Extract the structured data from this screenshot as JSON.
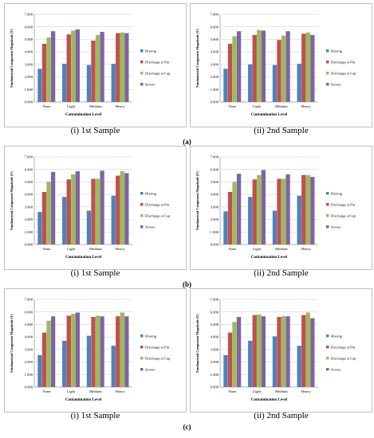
{
  "legend": [
    "Hissing",
    "Discharge at Pin",
    "Discharge at Cap",
    "Severe"
  ],
  "colors": [
    "#4f81bd",
    "#c0504d",
    "#9bbb59",
    "#8064a2"
  ],
  "row_labels": [
    "(a)",
    "(b)",
    "(c)"
  ],
  "chart_data": [
    {
      "type": "bar",
      "caption": "(i) 1st Sample",
      "categories": [
        "None",
        "Light",
        "Medium",
        "Heavy"
      ],
      "ylabel": "Fundamental Component Magnitude (V)",
      "xlabel": "Contamination Level",
      "yticks": [
        "0.000",
        "1.000",
        "2.000",
        "3.000",
        "4.000",
        "5.000",
        "6.000",
        "7.000"
      ],
      "ylim": [
        0,
        7
      ],
      "series": [
        {
          "name": "Hissing",
          "values": [
            2.65,
            3.05,
            2.95,
            3.05
          ]
        },
        {
          "name": "Discharge at Pin",
          "values": [
            4.65,
            5.4,
            4.9,
            5.5
          ]
        },
        {
          "name": "Discharge at Cap",
          "values": [
            5.15,
            5.7,
            5.35,
            5.55
          ]
        },
        {
          "name": "Severe",
          "values": [
            5.65,
            5.8,
            5.6,
            5.5
          ]
        }
      ]
    },
    {
      "type": "bar",
      "caption": "(ii) 2nd Sample",
      "categories": [
        "None",
        "Light",
        "Medium",
        "Heavy"
      ],
      "ylabel": "Fundamental Component Magnitude (V)",
      "xlabel": "Contamination Level",
      "yticks": [
        "0.000",
        "1.000",
        "2.000",
        "3.000",
        "4.000",
        "5.000",
        "6.000",
        "7.000"
      ],
      "ylim": [
        0,
        7
      ],
      "series": [
        {
          "name": "Hissing",
          "values": [
            2.65,
            3.0,
            2.95,
            3.05
          ]
        },
        {
          "name": "Discharge at Pin",
          "values": [
            4.65,
            5.35,
            4.95,
            5.45
          ]
        },
        {
          "name": "Discharge at Cap",
          "values": [
            5.25,
            5.75,
            5.3,
            5.55
          ]
        },
        {
          "name": "Severe",
          "values": [
            5.65,
            5.7,
            5.65,
            5.35
          ]
        }
      ]
    },
    {
      "type": "bar",
      "caption": "(i) 1st Sample",
      "categories": [
        "None",
        "Light",
        "Medium",
        "Heavy"
      ],
      "ylabel": "Fundamental Component Magnitude (V)",
      "xlabel": "Contamination Level",
      "yticks": [
        "0.000",
        "1.000",
        "2.000",
        "3.000",
        "4.000",
        "5.000",
        "6.000",
        "7.000"
      ],
      "ylim": [
        0,
        7
      ],
      "series": [
        {
          "name": "Hissing",
          "values": [
            2.6,
            3.8,
            2.7,
            3.9
          ]
        },
        {
          "name": "Discharge at Pin",
          "values": [
            4.2,
            5.2,
            5.25,
            5.5
          ]
        },
        {
          "name": "Discharge at Cap",
          "values": [
            5.0,
            5.6,
            5.25,
            5.85
          ]
        },
        {
          "name": "Severe",
          "values": [
            5.8,
            5.85,
            5.9,
            5.7
          ]
        }
      ]
    },
    {
      "type": "bar",
      "caption": "(ii) 2nd Sample",
      "categories": [
        "None",
        "Light",
        "Medium",
        "Heavy"
      ],
      "ylabel": "Fundamental Component Magnitude (V)",
      "xlabel": "Contamination Level",
      "yticks": [
        "0.000",
        "1.000",
        "2.000",
        "3.000",
        "4.000",
        "5.000",
        "6.000",
        "7.000"
      ],
      "ylim": [
        0,
        7
      ],
      "series": [
        {
          "name": "Hissing",
          "values": [
            2.65,
            3.8,
            2.7,
            3.9
          ]
        },
        {
          "name": "Discharge at Pin",
          "values": [
            4.2,
            5.2,
            5.25,
            5.55
          ]
        },
        {
          "name": "Discharge at Cap",
          "values": [
            5.0,
            5.55,
            5.25,
            5.55
          ]
        },
        {
          "name": "Severe",
          "values": [
            5.65,
            5.95,
            5.6,
            5.4
          ]
        }
      ]
    },
    {
      "type": "bar",
      "caption": "(i) 1st Sample",
      "categories": [
        "None",
        "Light",
        "Medium",
        "Heavy"
      ],
      "ylabel": "Fundamental Component Magnitude (V)",
      "xlabel": "Contamination Level",
      "yticks": [
        "0.000",
        "1.000",
        "2.000",
        "3.000",
        "4.000",
        "5.000",
        "6.000",
        "7.000"
      ],
      "ylim": [
        0,
        7
      ],
      "series": [
        {
          "name": "Hissing",
          "values": [
            2.55,
            3.7,
            4.1,
            3.3
          ]
        },
        {
          "name": "Discharge at Pin",
          "values": [
            4.35,
            5.7,
            5.6,
            5.65
          ]
        },
        {
          "name": "Discharge at Cap",
          "values": [
            5.3,
            5.85,
            5.7,
            5.95
          ]
        },
        {
          "name": "Severe",
          "values": [
            5.65,
            5.95,
            5.65,
            5.65
          ]
        }
      ]
    },
    {
      "type": "bar",
      "caption": "(ii) 2nd Sample",
      "categories": [
        "None",
        "Light",
        "Medium",
        "Heavy"
      ],
      "ylabel": "Fundamental Component Magnitude (V)",
      "xlabel": "Contamination Level",
      "yticks": [
        "0.000",
        "1.000",
        "2.000",
        "3.000",
        "4.000",
        "5.000",
        "6.000",
        "7.000"
      ],
      "ylim": [
        0,
        7
      ],
      "series": [
        {
          "name": "Hissing",
          "values": [
            2.55,
            3.7,
            4.05,
            3.3
          ]
        },
        {
          "name": "Discharge at Pin",
          "values": [
            4.35,
            5.75,
            5.6,
            5.75
          ]
        },
        {
          "name": "Discharge at Cap",
          "values": [
            5.2,
            5.8,
            5.65,
            5.95
          ]
        },
        {
          "name": "Severe",
          "values": [
            5.6,
            5.65,
            5.65,
            5.5
          ]
        }
      ]
    }
  ]
}
